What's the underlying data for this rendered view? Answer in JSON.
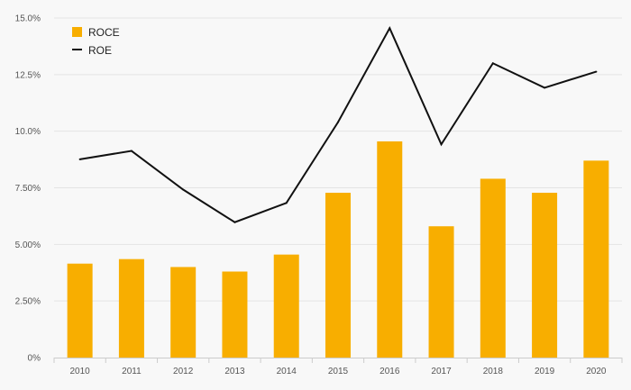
{
  "chart_data": {
    "type": "bar",
    "categories": [
      "2010",
      "2011",
      "2012",
      "2013",
      "2014",
      "2015",
      "2016",
      "2017",
      "2018",
      "2019",
      "2020"
    ],
    "series": [
      {
        "name": "ROCE",
        "type": "bar",
        "color": "#f8ae00",
        "values": [
          4.15,
          4.35,
          4.0,
          3.8,
          4.55,
          7.28,
          9.55,
          5.8,
          7.9,
          7.28,
          8.7
        ]
      },
      {
        "name": "ROE",
        "type": "line",
        "color": "#111111",
        "values": [
          8.76,
          9.13,
          7.42,
          5.98,
          6.83,
          10.4,
          14.55,
          9.42,
          13.0,
          11.92,
          12.63
        ]
      }
    ],
    "y_ticks": [
      "0%",
      "2.50%",
      "5.00%",
      "7.50%",
      "10.0%",
      "12.5%",
      "15.0%"
    ],
    "y_tick_values": [
      0,
      2.5,
      5,
      7.5,
      10,
      12.5,
      15
    ],
    "ylim": [
      0,
      15
    ],
    "grid": true,
    "legend_position": "top-left",
    "title": "",
    "xlabel": "",
    "ylabel": ""
  }
}
